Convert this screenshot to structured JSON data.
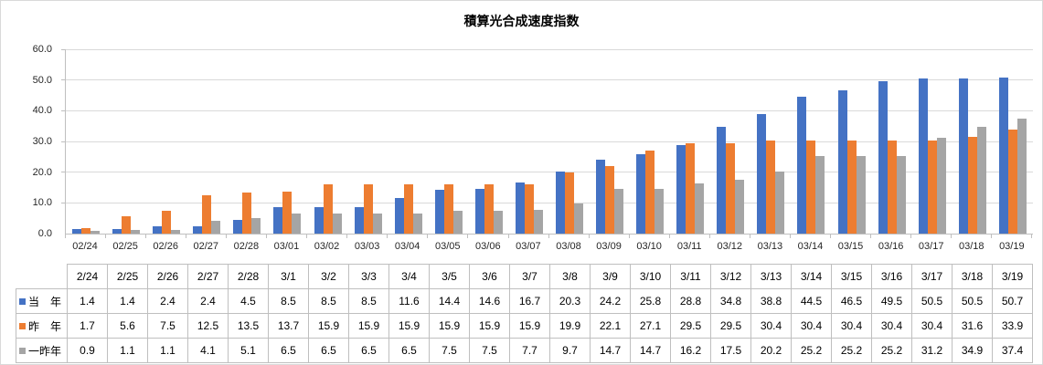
{
  "chart": {
    "title": "積算光合成速度指数",
    "y_tick_labels": [
      "60.0",
      "50.0",
      "40.0",
      "30.0",
      "20.0",
      "10.0",
      "0.0"
    ],
    "colors": {
      "series_this_year": "#4472C4",
      "series_last_year": "#ED7D31",
      "series_two_years_ago": "#A5A5A5",
      "gridline": "#D9D9D9",
      "axis_line": "#BFBFBF",
      "table_border": "#BFBFBF"
    }
  },
  "chart_data": {
    "type": "bar",
    "title": "積算光合成速度指数",
    "categories": [
      "02/24",
      "02/25",
      "02/26",
      "02/27",
      "02/28",
      "03/01",
      "03/02",
      "03/03",
      "03/04",
      "03/05",
      "03/06",
      "03/07",
      "03/08",
      "03/09",
      "03/10",
      "03/11",
      "03/12",
      "03/13",
      "03/14",
      "03/15",
      "03/16",
      "03/17",
      "03/18",
      "03/19"
    ],
    "series": [
      {
        "name": "当　年",
        "color": "#4472C4",
        "values": [
          1.4,
          1.4,
          2.4,
          2.4,
          4.5,
          8.5,
          8.5,
          8.5,
          11.6,
          14.4,
          14.6,
          16.7,
          20.3,
          24.2,
          25.8,
          28.8,
          34.8,
          38.8,
          44.5,
          46.5,
          49.5,
          50.5,
          50.5,
          50.7
        ]
      },
      {
        "name": "昨　年",
        "color": "#ED7D31",
        "values": [
          1.7,
          5.6,
          7.5,
          12.5,
          13.5,
          13.7,
          15.9,
          15.9,
          15.9,
          15.9,
          15.9,
          15.9,
          19.9,
          22.1,
          27.1,
          29.5,
          29.5,
          30.4,
          30.4,
          30.4,
          30.4,
          30.4,
          31.6,
          33.9
        ]
      },
      {
        "name": "一昨年",
        "color": "#A5A5A5",
        "values": [
          0.9,
          1.1,
          1.1,
          4.1,
          5.1,
          6.5,
          6.5,
          6.5,
          6.5,
          7.5,
          7.5,
          7.7,
          9.7,
          14.7,
          14.7,
          16.2,
          17.5,
          20.2,
          25.2,
          25.2,
          25.2,
          31.2,
          34.9,
          37.4
        ]
      }
    ],
    "xlabel": "",
    "ylabel": "",
    "ylim": [
      0,
      60
    ],
    "y_tick_step": 10,
    "grid": true,
    "legend_position": "data-table-left"
  },
  "data_table": {
    "corner_label": "",
    "column_headers": [
      "2/24",
      "2/25",
      "2/26",
      "2/27",
      "2/28",
      "3/1",
      "3/2",
      "3/3",
      "3/4",
      "3/5",
      "3/6",
      "3/7",
      "3/8",
      "3/9",
      "3/10",
      "3/11",
      "3/12",
      "3/13",
      "3/14",
      "3/15",
      "3/16",
      "3/17",
      "3/18",
      "3/19"
    ],
    "rows": [
      {
        "label": "当　年",
        "marker_color": "#4472C4",
        "values": [
          "1.4",
          "1.4",
          "2.4",
          "2.4",
          "4.5",
          "8.5",
          "8.5",
          "8.5",
          "11.6",
          "14.4",
          "14.6",
          "16.7",
          "20.3",
          "24.2",
          "25.8",
          "28.8",
          "34.8",
          "38.8",
          "44.5",
          "46.5",
          "49.5",
          "50.5",
          "50.5",
          "50.7"
        ]
      },
      {
        "label": "昨　年",
        "marker_color": "#ED7D31",
        "values": [
          "1.7",
          "5.6",
          "7.5",
          "12.5",
          "13.5",
          "13.7",
          "15.9",
          "15.9",
          "15.9",
          "15.9",
          "15.9",
          "15.9",
          "19.9",
          "22.1",
          "27.1",
          "29.5",
          "29.5",
          "30.4",
          "30.4",
          "30.4",
          "30.4",
          "30.4",
          "31.6",
          "33.9"
        ]
      },
      {
        "label": "一昨年",
        "marker_color": "#A5A5A5",
        "values": [
          "0.9",
          "1.1",
          "1.1",
          "4.1",
          "5.1",
          "6.5",
          "6.5",
          "6.5",
          "6.5",
          "7.5",
          "7.5",
          "7.7",
          "9.7",
          "14.7",
          "14.7",
          "16.2",
          "17.5",
          "20.2",
          "25.2",
          "25.2",
          "25.2",
          "31.2",
          "34.9",
          "37.4"
        ]
      }
    ]
  }
}
